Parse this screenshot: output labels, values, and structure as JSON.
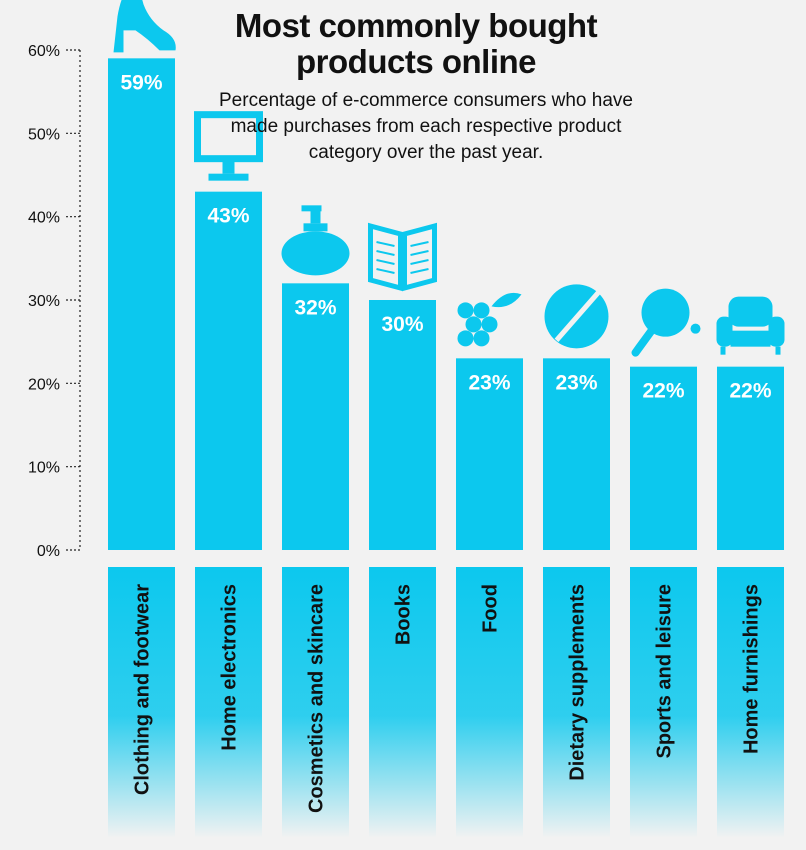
{
  "title": "Most commonly bought products online",
  "subtitle": "Percentage of e-commerce consumers who have made purchases from each respective product category over the past year.",
  "colors": {
    "bar": "#0cc8ee",
    "background": "#f2f2f2",
    "axis": "#222222",
    "icon": "#0cc8ee"
  },
  "chart_data": {
    "type": "bar",
    "title": "Most commonly bought products online",
    "subtitle": "Percentage of e-commerce consumers who have made purchases from each respective product category over the past year.",
    "categories": [
      "Clothing and footwear",
      "Home electronics",
      "Cosmetics and skincare",
      "Books",
      "Food",
      "Dietary supplements",
      "Sports and leisure",
      "Home furnishings"
    ],
    "values": [
      59,
      43,
      32,
      30,
      23,
      23,
      22,
      22
    ],
    "value_labels": [
      "59%",
      "43%",
      "32%",
      "30%",
      "23%",
      "23%",
      "22%",
      "22%"
    ],
    "icons": [
      "high-heel-icon",
      "monitor-icon",
      "lotion-bottle-icon",
      "open-book-icon",
      "grapes-icon",
      "pill-icon",
      "ping-pong-paddle-icon",
      "armchair-icon"
    ],
    "yticks": [
      "0%",
      "10%",
      "20%",
      "30%",
      "40%",
      "50%",
      "60%"
    ],
    "ytick_values": [
      0,
      10,
      20,
      30,
      40,
      50,
      60
    ],
    "ylim": [
      0,
      60
    ],
    "xlabel": "",
    "ylabel": "",
    "grid": false,
    "legend": "none"
  }
}
